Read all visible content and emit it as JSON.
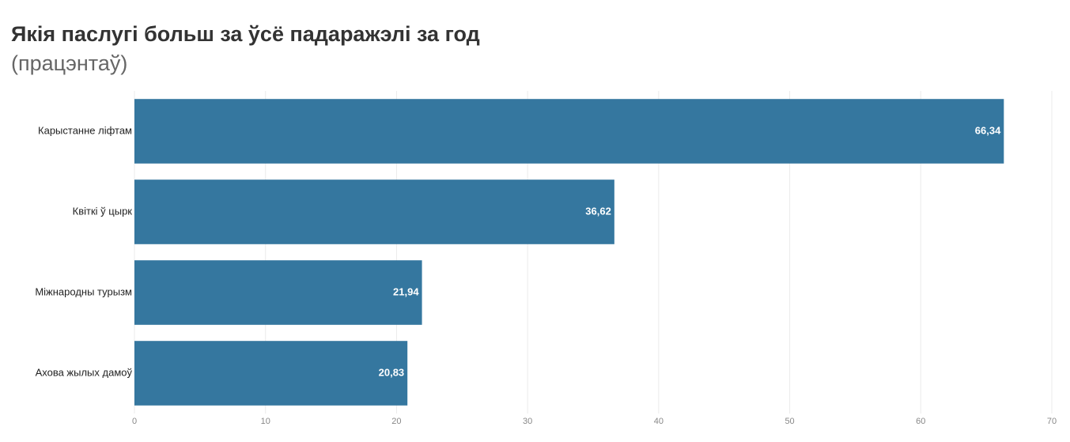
{
  "chart_data": {
    "type": "bar",
    "orientation": "horizontal",
    "title": "Якія паслугі больш за ўсё падаражэлі за год",
    "subtitle": "(працэнтаў)",
    "categories": [
      "Карыстанне ліфтам",
      "Квіткі ў цырк",
      "Міжнародны турызм",
      "Ахова жылых дамоў"
    ],
    "values": [
      66.34,
      36.62,
      21.94,
      20.83
    ],
    "value_labels": [
      "66,34",
      "36,62",
      "21,94",
      "20,83"
    ],
    "color": "#35779f",
    "xlim": [
      0,
      70
    ],
    "xticks": [
      0,
      10,
      20,
      30,
      40,
      50,
      60,
      70
    ],
    "grid": true
  }
}
